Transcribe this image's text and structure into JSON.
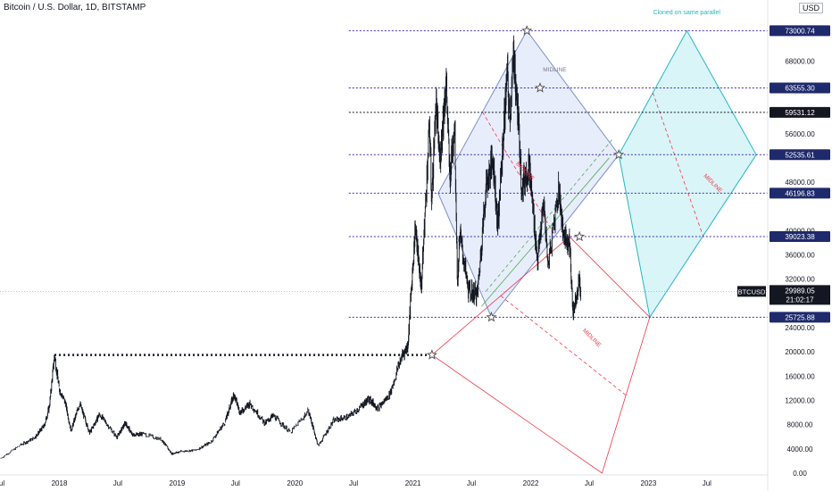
{
  "header": {
    "title": "Bitcoin / U.S. Dollar, 1D, BITSTAMP",
    "currency": "USD"
  },
  "colors": {
    "candle_up": "#089981",
    "candle_down": "#131722",
    "blue_channel_fill": "#e8edfb",
    "blue_channel_stroke": "#7b8fc9",
    "cyan_channel_fill": "#d9f5f7",
    "cyan_channel_stroke": "#26b5c4",
    "red_channel_stroke": "#f23645",
    "level_line": "#3d2fb8",
    "price_tag_bg": "#1e2a6b",
    "current_tag_bg": "#131722",
    "green_parallel": "#4caf50"
  },
  "chart_data": {
    "type": "candlestick",
    "title": "Bitcoin / U.S. Dollar, 1D, BITSTAMP",
    "symbol": "BTCUSD",
    "last_price": "29989.05",
    "countdown": "21:02:17",
    "ylim": [
      0,
      76000
    ],
    "xlim": [
      "2017-07-01",
      "2023-12-31"
    ],
    "y_ticks": [
      "68000.00",
      "56000.00",
      "48000.00",
      "40000.00",
      "36000.00",
      "32000.00",
      "24000.00",
      "20000.00",
      "16000.00",
      "12000.00",
      "8000.00",
      "4000.00",
      "0.00"
    ],
    "y_tick_values": [
      68000,
      56000,
      48000,
      40000,
      36000,
      32000,
      24000,
      20000,
      16000,
      12000,
      8000,
      4000,
      0
    ],
    "x_ticks": [
      {
        "label": "Jul",
        "date": "2017-07-01"
      },
      {
        "label": "2018",
        "date": "2018-01-01"
      },
      {
        "label": "Jul",
        "date": "2018-07-01"
      },
      {
        "label": "2019",
        "date": "2019-01-01"
      },
      {
        "label": "Jul",
        "date": "2019-07-01"
      },
      {
        "label": "2020",
        "date": "2020-01-01"
      },
      {
        "label": "Jul",
        "date": "2020-07-01"
      },
      {
        "label": "2021",
        "date": "2021-01-01"
      },
      {
        "label": "Jul",
        "date": "2021-07-01"
      },
      {
        "label": "2022",
        "date": "2022-01-01"
      },
      {
        "label": "Jul",
        "date": "2022-07-01"
      },
      {
        "label": "2023",
        "date": "2023-01-01"
      },
      {
        "label": "Jul",
        "date": "2023-07-01"
      }
    ],
    "price_path": [
      [
        "2017-07-01",
        2400
      ],
      [
        "2017-09-01",
        4600
      ],
      [
        "2017-10-15",
        5800
      ],
      [
        "2017-11-15",
        7800
      ],
      [
        "2017-12-01",
        11000
      ],
      [
        "2017-12-17",
        19500
      ],
      [
        "2017-12-31",
        14000
      ],
      [
        "2018-01-20",
        11500
      ],
      [
        "2018-02-06",
        7000
      ],
      [
        "2018-03-05",
        11500
      ],
      [
        "2018-04-05",
        6600
      ],
      [
        "2018-05-05",
        9700
      ],
      [
        "2018-06-28",
        5900
      ],
      [
        "2018-07-25",
        8300
      ],
      [
        "2018-08-15",
        6300
      ],
      [
        "2018-09-15",
        6500
      ],
      [
        "2018-11-15",
        5500
      ],
      [
        "2018-12-15",
        3200
      ],
      [
        "2019-01-15",
        3600
      ],
      [
        "2019-02-28",
        3800
      ],
      [
        "2019-04-15",
        5100
      ],
      [
        "2019-05-30",
        8500
      ],
      [
        "2019-06-26",
        13000
      ],
      [
        "2019-07-15",
        10000
      ],
      [
        "2019-08-15",
        11500
      ],
      [
        "2019-09-30",
        8200
      ],
      [
        "2019-10-26",
        9500
      ],
      [
        "2019-12-18",
        6700
      ],
      [
        "2020-02-12",
        10300
      ],
      [
        "2020-03-13",
        4500
      ],
      [
        "2020-04-30",
        8700
      ],
      [
        "2020-06-15",
        9300
      ],
      [
        "2020-07-27",
        11100
      ],
      [
        "2020-08-17",
        12300
      ],
      [
        "2020-09-15",
        10700
      ],
      [
        "2020-10-21",
        13000
      ],
      [
        "2020-11-25",
        19000
      ],
      [
        "2020-12-16",
        21000
      ],
      [
        "2021-01-08",
        40500
      ],
      [
        "2021-01-27",
        30500
      ],
      [
        "2021-02-21",
        57500
      ],
      [
        "2021-02-28",
        45000
      ],
      [
        "2021-03-13",
        61000
      ],
      [
        "2021-03-25",
        51500
      ],
      [
        "2021-04-14",
        64800
      ],
      [
        "2021-04-25",
        48500
      ],
      [
        "2021-05-10",
        58000
      ],
      [
        "2021-05-19",
        31000
      ],
      [
        "2021-05-26",
        39500
      ],
      [
        "2021-06-22",
        30000
      ],
      [
        "2021-07-20",
        29500
      ],
      [
        "2021-08-15",
        47000
      ],
      [
        "2021-09-06",
        52000
      ],
      [
        "2021-09-21",
        40700
      ],
      [
        "2021-10-20",
        66000
      ],
      [
        "2021-10-27",
        58500
      ],
      [
        "2021-11-10",
        69000
      ],
      [
        "2021-11-28",
        54000
      ],
      [
        "2021-12-04",
        47000
      ],
      [
        "2021-12-27",
        51000
      ],
      [
        "2022-01-22",
        35000
      ],
      [
        "2022-02-10",
        44500
      ],
      [
        "2022-02-24",
        34500
      ],
      [
        "2022-03-29",
        47500
      ],
      [
        "2022-04-11",
        39500
      ],
      [
        "2022-05-01",
        38000
      ],
      [
        "2022-05-12",
        26500
      ],
      [
        "2022-05-31",
        31800
      ],
      [
        "2022-06-05",
        29989
      ]
    ],
    "horizontal_levels": [
      {
        "value": 73000.74,
        "label": "73000.74"
      },
      {
        "value": 63555.3,
        "label": "63555.30"
      },
      {
        "value": 59531.12,
        "label": "59531.12"
      },
      {
        "value": 52535.61,
        "label": "52535.61"
      },
      {
        "value": 46196.83,
        "label": "46196.83"
      },
      {
        "value": 39023.38,
        "label": "39023.38"
      },
      {
        "value": 25725.88,
        "label": "25725.88"
      }
    ],
    "prior_high": {
      "value": 19500,
      "from": "2017-12-17",
      "to": "2021-03-01"
    },
    "channels": {
      "blue": [
        [
          "2021-03-20",
          46196.83
        ],
        [
          "2021-12-20",
          73000.74
        ],
        [
          "2022-10-01",
          52535.61
        ],
        [
          "2021-09-01",
          25725.88
        ]
      ],
      "cyan": [
        [
          "2022-10-01",
          52535.61
        ],
        [
          "2023-04-30",
          73000.74
        ],
        [
          "2023-12-01",
          52535.61
        ],
        [
          "2023-01-05",
          25725.88
        ]
      ],
      "red": [
        [
          "2021-03-01",
          19500
        ],
        [
          "2022-05-01",
          39023.38
        ],
        [
          "2023-01-05",
          25725.88
        ],
        [
          "2022-08-10",
          0
        ]
      ]
    },
    "annotations": {
      "cloned": "Cloned on same parallel",
      "midline_gray": "MIDLINE",
      "midline_red_1": "MIDLINE",
      "midline_red_2": "MIDLINE",
      "midline_red_3": "MIDLINE"
    }
  }
}
